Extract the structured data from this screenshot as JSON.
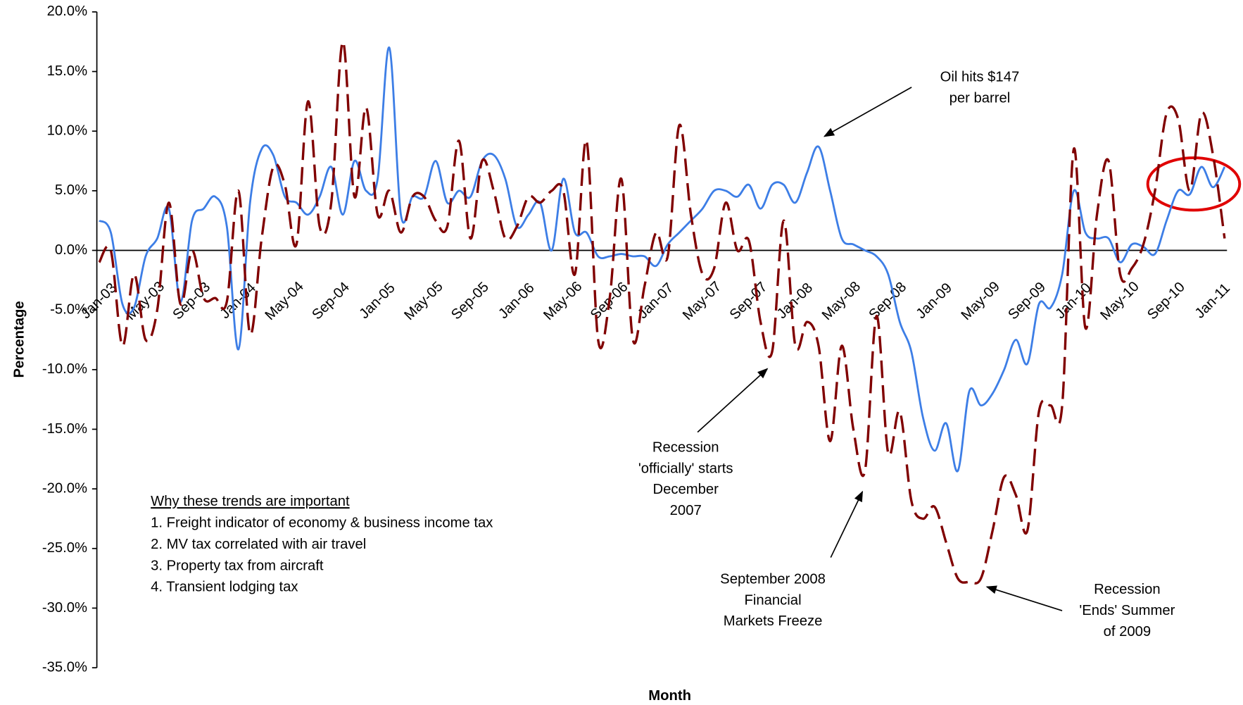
{
  "chart_data": {
    "type": "line",
    "x_label": "Month",
    "y_label": "Percentage",
    "categories": [
      "Jan-03",
      null,
      null,
      null,
      "May-03",
      null,
      null,
      null,
      "Sep-03",
      null,
      null,
      null,
      "Jan-04",
      null,
      null,
      null,
      "May-04",
      null,
      null,
      null,
      "Sep-04",
      null,
      null,
      null,
      "Jan-05",
      null,
      null,
      null,
      "May-05",
      null,
      null,
      null,
      "Sep-05",
      null,
      null,
      null,
      "Jan-06",
      null,
      null,
      null,
      "May-06",
      null,
      null,
      null,
      "Sep-06",
      null,
      null,
      null,
      "Jan-07",
      null,
      null,
      null,
      "May-07",
      null,
      null,
      null,
      "Sep-07",
      null,
      null,
      null,
      "Jan-08",
      null,
      null,
      null,
      "May-08",
      null,
      null,
      null,
      "Sep-08",
      null,
      null,
      null,
      "Jan-09",
      null,
      null,
      null,
      "May-09",
      null,
      null,
      null,
      "Sep-09",
      null,
      null,
      null,
      "Jan-10",
      null,
      null,
      null,
      "May-10",
      null,
      null,
      null,
      "Sep-10",
      null,
      null,
      null,
      "Jan-11",
      null
    ],
    "series": [
      {
        "color": "#3d7ee6",
        "dash": false,
        "values": [
          2.5,
          1.5,
          -4.5,
          -4.8,
          -0.5,
          1,
          3.5,
          -4.3,
          2.5,
          3.5,
          4.5,
          2,
          -8.3,
          4,
          8.5,
          8,
          4.5,
          4,
          3,
          4.5,
          7,
          3,
          7.5,
          5,
          6,
          17,
          3,
          4.5,
          4.5,
          7.5,
          4,
          5,
          4.5,
          7.5,
          8,
          6,
          2,
          3,
          4,
          0,
          6,
          1.5,
          1.5,
          -0.5,
          -0.5,
          -0.3,
          -0.5,
          -0.5,
          -1.3,
          0.5,
          1.5,
          2.5,
          3.5,
          5,
          5,
          4.5,
          5.5,
          3.5,
          5.5,
          5.5,
          4,
          6.5,
          8.7,
          5,
          1,
          0.5,
          0,
          -0.5,
          -2,
          -6,
          -8.5,
          -14,
          -16.8,
          -14.5,
          -18.5,
          -11.8,
          -13,
          -12,
          -10,
          -7.5,
          -9.5,
          -4.5,
          -4.8,
          -2,
          5,
          1.5,
          1,
          1,
          -1,
          0.5,
          0.3,
          -0.3,
          2.5,
          5,
          4.7,
          7,
          5.3,
          7
        ]
      },
      {
        "color": "#800000",
        "dash": true,
        "values": [
          -1,
          0,
          -8,
          -2,
          -7.5,
          -5,
          4,
          -4.5,
          0,
          -4,
          -4,
          -4.3,
          5,
          -7,
          1,
          7,
          5.5,
          0.5,
          12.5,
          2,
          4,
          17.5,
          4.5,
          12,
          3,
          5,
          1.5,
          4.5,
          4.5,
          2.5,
          2,
          9.2,
          1,
          7.5,
          5,
          1,
          2,
          4.5,
          4,
          5,
          5,
          -2,
          9.2,
          -7.5,
          -4,
          6,
          -7.5,
          -3,
          1.5,
          -0.5,
          10.5,
          3,
          -2,
          -1.5,
          4,
          0,
          0.8,
          -6,
          -8.5,
          2.5,
          -8,
          -6,
          -8,
          -16,
          -8,
          -15,
          -18.5,
          -5.5,
          -17,
          -13.5,
          -21,
          -22.5,
          -21.5,
          -24.5,
          -27.5,
          -27.8,
          -27.5,
          -23.5,
          -19,
          -20.5,
          -23.5,
          -13.5,
          -13,
          -13,
          8.5,
          -6.5,
          3,
          7.5,
          -2,
          -1.5,
          0.5,
          5,
          11.5,
          11,
          5,
          11.5,
          8,
          1
        ]
      }
    ],
    "ylim": [
      -35,
      20
    ],
    "yticks": [
      {
        "value": -35,
        "label": "-35.0%"
      },
      {
        "value": -30,
        "label": "-30.0%"
      },
      {
        "value": -25,
        "label": "-25.0%"
      },
      {
        "value": -20,
        "label": "-20.0%"
      },
      {
        "value": -15,
        "label": "-15.0%"
      },
      {
        "value": -10,
        "label": "-10.0%"
      },
      {
        "value": -5,
        "label": "-5.0%"
      },
      {
        "value": 0,
        "label": "0.0%"
      },
      {
        "value": 5,
        "label": "5.0%"
      },
      {
        "value": 10,
        "label": "10.0%"
      },
      {
        "value": 15,
        "label": "15.0%"
      },
      {
        "value": 20,
        "label": "20.0%"
      }
    ],
    "grid": false,
    "annotations": [
      {
        "lines": [
          "Oil hits $147",
          "per barrel"
        ]
      },
      {
        "lines": [
          "Recession",
          "'officially' starts",
          "December",
          "2007"
        ]
      },
      {
        "lines": [
          "September 2008",
          "Financial",
          "Markets Freeze"
        ]
      },
      {
        "lines": [
          "Recession",
          "'Ends' Summer",
          "of 2009"
        ]
      }
    ],
    "note": {
      "title": "Why these trends are important",
      "items": [
        "1. Freight indicator of economy & business income tax",
        "2. MV tax correlated with air travel",
        "3. Property tax from aircraft",
        "4. Transient  lodging tax"
      ]
    }
  }
}
